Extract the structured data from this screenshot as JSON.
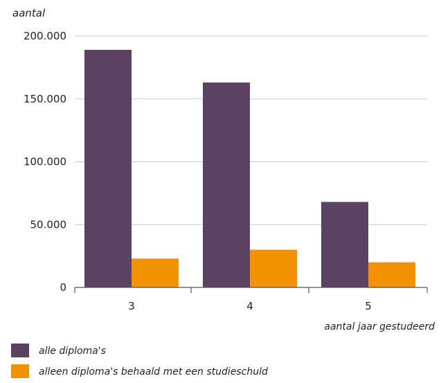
{
  "chart_data": {
    "type": "bar",
    "ylabel": "aantal",
    "xlabel": "aantal jaar gestudeerd",
    "categories": [
      "3",
      "4",
      "5"
    ],
    "ylim": [
      0,
      200000
    ],
    "yticks": [
      0,
      50000,
      100000,
      150000,
      200000
    ],
    "ytick_labels": [
      "0",
      "50.000",
      "100.000",
      "150.000",
      "200.000"
    ],
    "grid": true,
    "legend_position": "bottom-left",
    "series": [
      {
        "name": "alle diploma's",
        "color": "#5b4263",
        "values": [
          189000,
          163000,
          68000
        ]
      },
      {
        "name": "alleen diploma's behaald met een studieschuld",
        "color": "#f39200",
        "values": [
          23000,
          30000,
          20000
        ]
      }
    ]
  }
}
